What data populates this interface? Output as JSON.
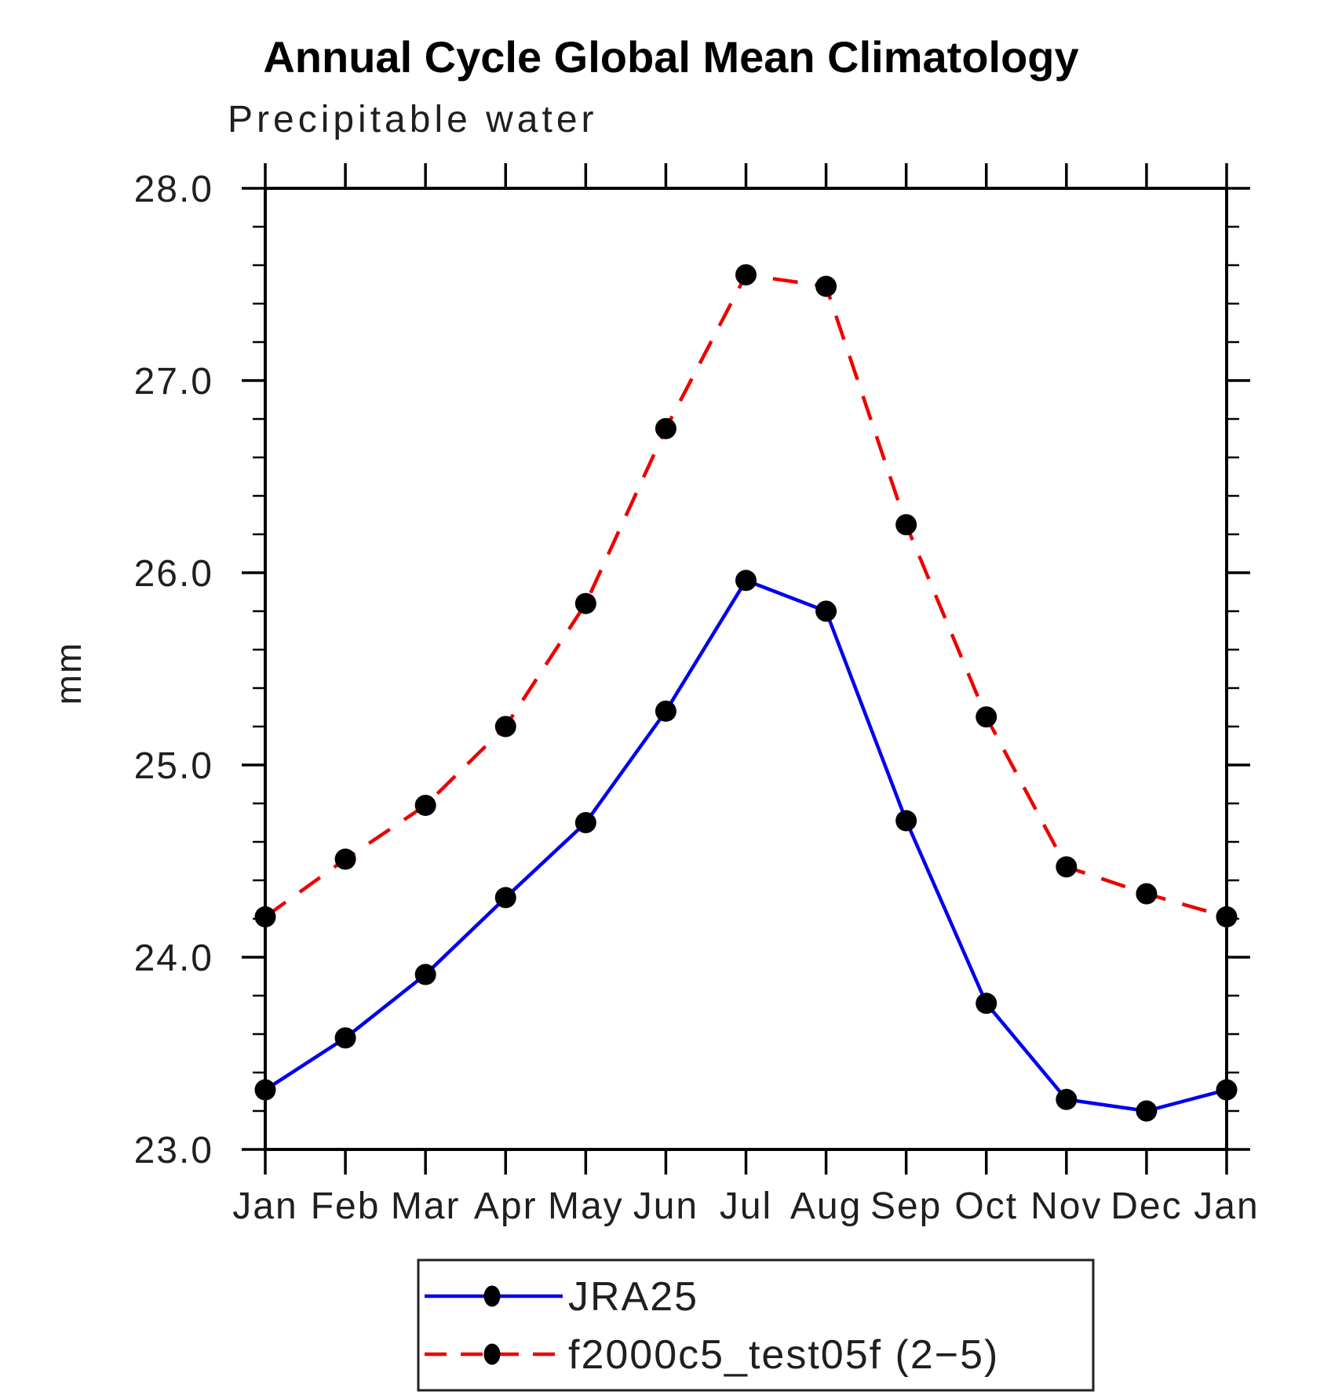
{
  "chart_data": {
    "type": "line",
    "title": "Annual Cycle Global Mean Climatology",
    "subtitle": "Precipitable water",
    "ylabel": "mm",
    "x_categories": [
      "Jan",
      "Feb",
      "Mar",
      "Apr",
      "May",
      "Jun",
      "Jul",
      "Aug",
      "Sep",
      "Oct",
      "Nov",
      "Dec",
      "Jan"
    ],
    "ylim": [
      23.0,
      28.0
    ],
    "y_major_step": 1.0,
    "y_minor_step": 0.2,
    "y_tick_labels": [
      "23.0",
      "24.0",
      "25.0",
      "26.0",
      "27.0",
      "28.0"
    ],
    "grid": false,
    "legend_position": "bottom-center",
    "frame_color": "#000000",
    "marker_color": "#000000",
    "series": [
      {
        "name": "JRA25",
        "color": "#0000ee",
        "line_style": "solid",
        "marker": "filled-circle",
        "values": [
          23.31,
          23.58,
          23.91,
          24.31,
          24.7,
          25.28,
          25.96,
          25.8,
          24.71,
          23.76,
          23.26,
          23.2,
          23.31
        ]
      },
      {
        "name": "f2000c5_test05f (2−5)",
        "color": "#ee0000",
        "line_style": "dashed",
        "marker": "filled-circle",
        "values": [
          24.21,
          24.51,
          24.79,
          25.2,
          25.84,
          26.75,
          27.55,
          27.49,
          26.25,
          25.25,
          24.47,
          24.33,
          24.21
        ]
      }
    ]
  }
}
